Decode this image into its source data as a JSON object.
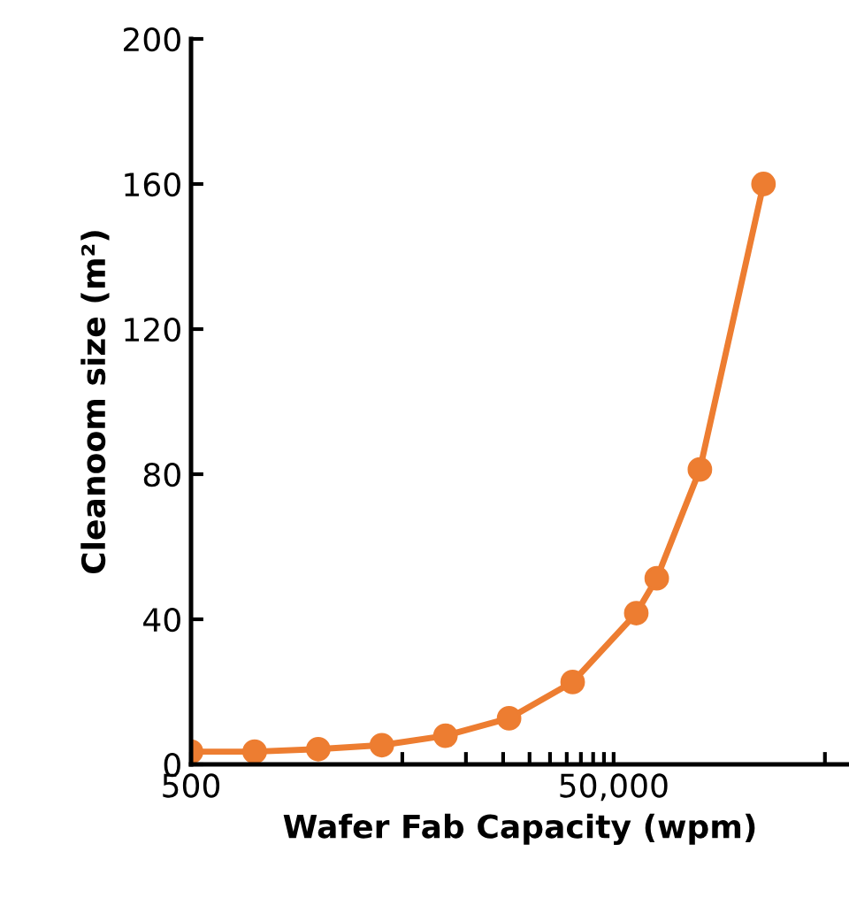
{
  "chart_data": {
    "type": "line",
    "xlabel": "Wafer Fab Capacity (wpm)",
    "ylabel": "Cleanoom size (m²)",
    "log": "x",
    "x": [
      500,
      1000,
      2000,
      4000,
      8000,
      16000,
      32000,
      64000,
      80000,
      128000,
      256000
    ],
    "series": [
      {
        "color": "#ed7d31",
        "values": [
          3.5,
          3.5,
          4.2,
          5.3,
          7.9,
          12.7,
          22.7,
          41.7,
          51.3,
          81.3,
          160
        ]
      }
    ],
    "xlim": [
      500,
      650000
    ],
    "xticks": [
      500,
      {
        "value": 5000,
        "label": null
      },
      {
        "value": 10000,
        "label": null
      },
      {
        "value": 15000,
        "label": null
      },
      {
        "value": 20000,
        "label": null
      },
      {
        "value": 25000,
        "label": null
      },
      {
        "value": 30000,
        "label": null
      },
      {
        "value": 35000,
        "label": null
      },
      {
        "value": 40000,
        "label": null
      },
      {
        "value": 45000,
        "label": null
      },
      {
        "value": 50000,
        "label": "50,000"
      },
      {
        "value": 500000,
        "label": null
      }
    ],
    "ylim": [
      0,
      200
    ],
    "yticks": [
      0,
      40,
      80,
      120,
      160,
      200
    ],
    "grid": false,
    "marker": "circle",
    "line_style": "solid",
    "legend": false
  }
}
